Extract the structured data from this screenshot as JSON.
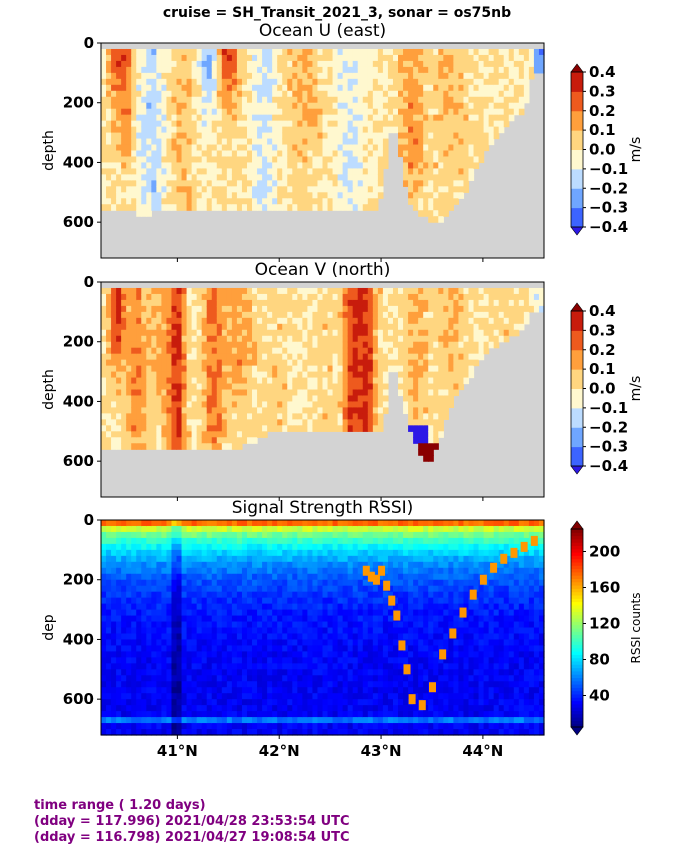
{
  "suptitle": "cruise = SH_Transit_2021_3,  sonar = os75nb",
  "footer": {
    "line1": "time range ( 1.20 days)",
    "line2": "(dday = 117.996) 2021/04/28 23:53:54 UTC",
    "line3": "(dday = 116.798) 2021/04/27 19:08:54 UTC"
  },
  "colors": {
    "nodata": "#d3d3d3",
    "footer_text": "#800080"
  },
  "chart_data": [
    {
      "type": "heatmap",
      "title": "Ocean U (east)",
      "ylabel": "depth",
      "xlabel": "",
      "xlim": [
        40.25,
        44.6
      ],
      "ylim": [
        720,
        0
      ],
      "xticks": [
        41,
        42,
        43,
        44
      ],
      "xtick_labels": [
        "41°N",
        "42°N",
        "43°N",
        "44°N"
      ],
      "yticks": [
        0,
        200,
        400,
        600
      ],
      "show_xticklabels": false,
      "colormap": "jet-discrete",
      "colorbar": {
        "label": "m/s",
        "ticks": [
          0.4,
          0.3,
          0.2,
          0.1,
          0.0,
          -0.1,
          -0.2,
          -0.3,
          -0.4
        ],
        "tick_labels": [
          "0.4",
          "0.3",
          "0.2",
          "0.1",
          "0.0",
          "−0.1",
          "−0.2",
          "−0.3",
          "−0.4"
        ],
        "range": [
          -0.4,
          0.4
        ],
        "extend": "both"
      },
      "bottom_profile": {
        "lat": [
          40.25,
          40.4,
          40.6,
          40.7,
          40.8,
          40.9,
          41.0,
          41.1,
          41.2,
          41.3,
          41.4,
          41.5,
          41.6,
          41.7,
          41.8,
          41.9,
          42.0,
          42.1,
          42.2,
          42.3,
          42.4,
          42.5,
          42.6,
          42.7,
          42.8,
          42.9,
          42.95,
          43.0,
          43.1,
          43.15,
          43.2,
          43.3,
          43.4,
          43.5,
          43.6,
          43.7,
          43.8,
          43.9,
          44.0,
          44.2,
          44.3,
          44.4,
          44.5,
          44.6
        ],
        "depth": [
          550,
          565,
          570,
          575,
          565,
          560,
          555,
          560,
          560,
          555,
          550,
          560,
          565,
          555,
          555,
          560,
          555,
          555,
          555,
          555,
          560,
          560,
          560,
          560,
          560,
          560,
          555,
          520,
          290,
          290,
          410,
          560,
          580,
          605,
          600,
          560,
          520,
          450,
          380,
          285,
          255,
          235,
          90,
          90
        ]
      },
      "bands": [
        {
          "lat": 40.4,
          "w": 0.08,
          "v": 0.28,
          "dmax": 90
        },
        {
          "lat": 40.5,
          "w": 0.06,
          "v": 0.2,
          "dmax": 300
        },
        {
          "lat": 40.75,
          "w": 0.12,
          "v": -0.15,
          "dmax": 500
        },
        {
          "lat": 41.05,
          "w": 0.12,
          "v": 0.08,
          "dmax": 500
        },
        {
          "lat": 41.3,
          "w": 0.08,
          "v": -0.25,
          "dmax": 120
        },
        {
          "lat": 41.5,
          "w": 0.1,
          "v": 0.3,
          "dmax": 90
        },
        {
          "lat": 41.85,
          "w": 0.12,
          "v": -0.12,
          "dmax": 500
        },
        {
          "lat": 42.25,
          "w": 0.15,
          "v": 0.12,
          "dmax": 300
        },
        {
          "lat": 42.7,
          "w": 0.15,
          "v": -0.1,
          "dmax": 550
        },
        {
          "lat": 43.3,
          "w": 0.12,
          "v": 0.15,
          "dmax": 400
        },
        {
          "lat": 43.7,
          "w": 0.2,
          "v": 0.08,
          "dmax": 400
        },
        {
          "lat": 44.15,
          "w": 0.1,
          "v": 0.02,
          "dmax": 200
        },
        {
          "lat": 44.55,
          "w": 0.05,
          "v": -0.35,
          "dmax": 90
        }
      ]
    },
    {
      "type": "heatmap",
      "title": "Ocean V (north)",
      "ylabel": "depth",
      "xlabel": "",
      "xlim": [
        40.25,
        44.6
      ],
      "ylim": [
        720,
        0
      ],
      "xticks": [
        41,
        42,
        43,
        44
      ],
      "xtick_labels": [
        "41°N",
        "42°N",
        "43°N",
        "44°N"
      ],
      "yticks": [
        0,
        200,
        400,
        600
      ],
      "show_xticklabels": false,
      "colormap": "jet-discrete",
      "colorbar": {
        "label": "m/s",
        "ticks": [
          0.4,
          0.3,
          0.2,
          0.1,
          0.0,
          -0.1,
          -0.2,
          -0.3,
          -0.4
        ],
        "tick_labels": [
          "0.4",
          "0.3",
          "0.2",
          "0.1",
          "0.0",
          "−0.1",
          "−0.2",
          "−0.3",
          "−0.4"
        ],
        "range": [
          -0.4,
          0.4
        ],
        "extend": "both"
      },
      "bottom_profile": {
        "lat": [
          40.25,
          40.4,
          40.5,
          40.6,
          40.7,
          40.8,
          40.9,
          41.0,
          41.1,
          41.2,
          41.3,
          41.4,
          41.5,
          41.6,
          41.7,
          41.8,
          41.9,
          42.0,
          42.2,
          42.4,
          42.5,
          42.6,
          42.7,
          42.8,
          42.9,
          43.0,
          43.05,
          43.1,
          43.15,
          43.2,
          43.3,
          43.4,
          43.5,
          43.6,
          43.7,
          43.8,
          43.9,
          44.0,
          44.2,
          44.3,
          44.4,
          44.5,
          44.6
        ],
        "depth": [
          550,
          555,
          560,
          555,
          560,
          560,
          555,
          560,
          560,
          560,
          555,
          560,
          560,
          555,
          545,
          520,
          505,
          500,
          505,
          505,
          500,
          500,
          500,
          500,
          500,
          500,
          420,
          290,
          290,
          400,
          500,
          600,
          610,
          500,
          400,
          360,
          300,
          250,
          200,
          180,
          160,
          90,
          90
        ]
      },
      "bands": [
        {
          "lat": 40.4,
          "w": 0.08,
          "v": 0.32,
          "dmax": 200
        },
        {
          "lat": 40.6,
          "w": 0.1,
          "v": 0.18,
          "dmax": 500
        },
        {
          "lat": 40.85,
          "w": 0.1,
          "v": 0.12,
          "dmax": 400
        },
        {
          "lat": 41.0,
          "w": 0.08,
          "v": 0.3,
          "dmax": 520
        },
        {
          "lat": 41.35,
          "w": 0.1,
          "v": 0.22,
          "dmax": 500
        },
        {
          "lat": 41.6,
          "w": 0.15,
          "v": 0.15,
          "dmax": 300
        },
        {
          "lat": 42.0,
          "w": 0.15,
          "v": 0.05,
          "dmax": 500
        },
        {
          "lat": 42.45,
          "w": 0.1,
          "v": 0.05,
          "dmax": 500
        },
        {
          "lat": 42.7,
          "w": 0.08,
          "v": 0.25,
          "dmax": 500
        },
        {
          "lat": 42.85,
          "w": 0.1,
          "v": 0.32,
          "dmax": 500
        },
        {
          "lat": 43.35,
          "w": 0.1,
          "v": 0.12,
          "dmax": 400
        },
        {
          "lat": 43.7,
          "w": 0.15,
          "v": 0.08,
          "dmax": 300
        },
        {
          "lat": 44.2,
          "w": 0.12,
          "v": 0.05,
          "dmax": 200
        },
        {
          "lat": 44.55,
          "w": 0.05,
          "v": -0.1,
          "dmax": 90
        }
      ]
    },
    {
      "type": "heatmap",
      "title": "Signal Strength RSSI)",
      "ylabel": "dep",
      "xlabel": "",
      "xlim": [
        40.25,
        44.6
      ],
      "ylim": [
        720,
        0
      ],
      "xticks": [
        41,
        42,
        43,
        44
      ],
      "xtick_labels": [
        "41°N",
        "42°N",
        "43°N",
        "44°N"
      ],
      "yticks": [
        0,
        200,
        400,
        600
      ],
      "show_xticklabels": true,
      "colormap": "jet-continuous",
      "colorbar": {
        "label": "RSSI counts",
        "ticks": [
          200,
          160,
          120,
          80,
          40
        ],
        "tick_labels": [
          "200",
          "160",
          "120",
          "80",
          "40"
        ],
        "range": [
          5,
          225
        ],
        "extend": "both"
      },
      "scatter_layer": {
        "lat": [
          42.85,
          42.9,
          42.95,
          43.0,
          43.05,
          43.1,
          43.15,
          43.2,
          43.25,
          43.3,
          43.4,
          43.5,
          43.6,
          43.7,
          43.8,
          43.9,
          44.0,
          44.1,
          44.2,
          44.3,
          44.4,
          44.5
        ],
        "depth": [
          170,
          190,
          200,
          170,
          220,
          270,
          320,
          420,
          500,
          600,
          620,
          560,
          450,
          380,
          310,
          250,
          200,
          160,
          130,
          110,
          90,
          70
        ]
      }
    }
  ]
}
